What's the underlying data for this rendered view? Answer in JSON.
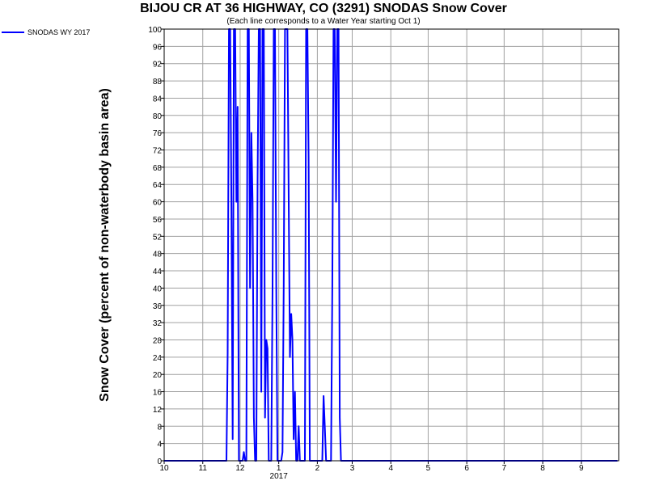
{
  "chart_data": {
    "type": "line",
    "title": "BIJOU CR AT 36 HIGHWAY, CO (3291) SNODAS Snow Cover",
    "subtitle": "(Each line corresponds to a Water Year starting Oct 1)",
    "ylabel": "Snow Cover (percent of non-waterbody basin area)",
    "xlabel": "",
    "ylim": [
      0,
      100
    ],
    "yticks": [
      0,
      4,
      8,
      12,
      16,
      20,
      24,
      28,
      32,
      36,
      40,
      44,
      48,
      52,
      56,
      60,
      64,
      68,
      72,
      76,
      80,
      84,
      88,
      92,
      96,
      100
    ],
    "xlim": [
      "2016-10-01",
      "2017-10-01"
    ],
    "xticks": [
      {
        "date": "2016-10-01",
        "label": "10"
      },
      {
        "date": "2016-11-01",
        "label": "11"
      },
      {
        "date": "2016-12-01",
        "label": "12"
      },
      {
        "date": "2017-01-01",
        "label": "1"
      },
      {
        "date": "2017-02-01",
        "label": "2"
      },
      {
        "date": "2017-03-01",
        "label": "3"
      },
      {
        "date": "2017-04-01",
        "label": "4"
      },
      {
        "date": "2017-05-01",
        "label": "5"
      },
      {
        "date": "2017-06-01",
        "label": "6"
      },
      {
        "date": "2017-07-01",
        "label": "7"
      },
      {
        "date": "2017-08-01",
        "label": "8"
      },
      {
        "date": "2017-09-01",
        "label": "9"
      }
    ],
    "year_label": {
      "date": "2017-01-01",
      "label": "2017"
    },
    "grid": true,
    "legend_position": "top-left",
    "series": [
      {
        "name": "SNODAS WY 2017",
        "color": "#0000ff",
        "points": [
          [
            "2016-10-01",
            0
          ],
          [
            "2016-11-20",
            0
          ],
          [
            "2016-11-21",
            25
          ],
          [
            "2016-11-22",
            100
          ],
          [
            "2016-11-23",
            100
          ],
          [
            "2016-11-24",
            60
          ],
          [
            "2016-11-25",
            5
          ],
          [
            "2016-11-26",
            100
          ],
          [
            "2016-11-27",
            100
          ],
          [
            "2016-11-28",
            60
          ],
          [
            "2016-11-29",
            82
          ],
          [
            "2016-11-30",
            0
          ],
          [
            "2016-12-01",
            0
          ],
          [
            "2016-12-03",
            0
          ],
          [
            "2016-12-04",
            2
          ],
          [
            "2016-12-05",
            0
          ],
          [
            "2016-12-06",
            0
          ],
          [
            "2016-12-07",
            100
          ],
          [
            "2016-12-08",
            100
          ],
          [
            "2016-12-09",
            40
          ],
          [
            "2016-12-10",
            76
          ],
          [
            "2016-12-11",
            60
          ],
          [
            "2016-12-12",
            10
          ],
          [
            "2016-12-13",
            0
          ],
          [
            "2016-12-14",
            0
          ],
          [
            "2016-12-15",
            65
          ],
          [
            "2016-12-16",
            100
          ],
          [
            "2016-12-17",
            100
          ],
          [
            "2016-12-18",
            16
          ],
          [
            "2016-12-19",
            100
          ],
          [
            "2016-12-20",
            100
          ],
          [
            "2016-12-21",
            10
          ],
          [
            "2016-12-22",
            28
          ],
          [
            "2016-12-23",
            26
          ],
          [
            "2016-12-24",
            0
          ],
          [
            "2016-12-26",
            0
          ],
          [
            "2016-12-27",
            40
          ],
          [
            "2016-12-28",
            100
          ],
          [
            "2016-12-29",
            100
          ],
          [
            "2016-12-30",
            40
          ],
          [
            "2016-12-31",
            0
          ],
          [
            "2017-01-01",
            0
          ],
          [
            "2017-01-03",
            0
          ],
          [
            "2017-01-04",
            2
          ],
          [
            "2017-01-05",
            40
          ],
          [
            "2017-01-06",
            100
          ],
          [
            "2017-01-07",
            100
          ],
          [
            "2017-01-08",
            100
          ],
          [
            "2017-01-09",
            60
          ],
          [
            "2017-01-10",
            24
          ],
          [
            "2017-01-11",
            34
          ],
          [
            "2017-01-12",
            28
          ],
          [
            "2017-01-13",
            5
          ],
          [
            "2017-01-14",
            16
          ],
          [
            "2017-01-15",
            0
          ],
          [
            "2017-01-16",
            0
          ],
          [
            "2017-01-17",
            8
          ],
          [
            "2017-01-18",
            0
          ],
          [
            "2017-01-20",
            0
          ],
          [
            "2017-01-22",
            0
          ],
          [
            "2017-01-23",
            100
          ],
          [
            "2017-01-24",
            100
          ],
          [
            "2017-01-25",
            70
          ],
          [
            "2017-01-26",
            0
          ],
          [
            "2017-01-28",
            0
          ],
          [
            "2017-02-01",
            0
          ],
          [
            "2017-02-05",
            0
          ],
          [
            "2017-02-06",
            15
          ],
          [
            "2017-02-07",
            8
          ],
          [
            "2017-02-08",
            0
          ],
          [
            "2017-02-12",
            0
          ],
          [
            "2017-02-13",
            40
          ],
          [
            "2017-02-14",
            100
          ],
          [
            "2017-02-15",
            100
          ],
          [
            "2017-02-16",
            60
          ],
          [
            "2017-02-17",
            100
          ],
          [
            "2017-02-18",
            100
          ],
          [
            "2017-02-19",
            10
          ],
          [
            "2017-02-20",
            0
          ],
          [
            "2017-03-01",
            0
          ],
          [
            "2017-03-20",
            0
          ],
          [
            "2017-09-30",
            0
          ]
        ]
      }
    ]
  }
}
